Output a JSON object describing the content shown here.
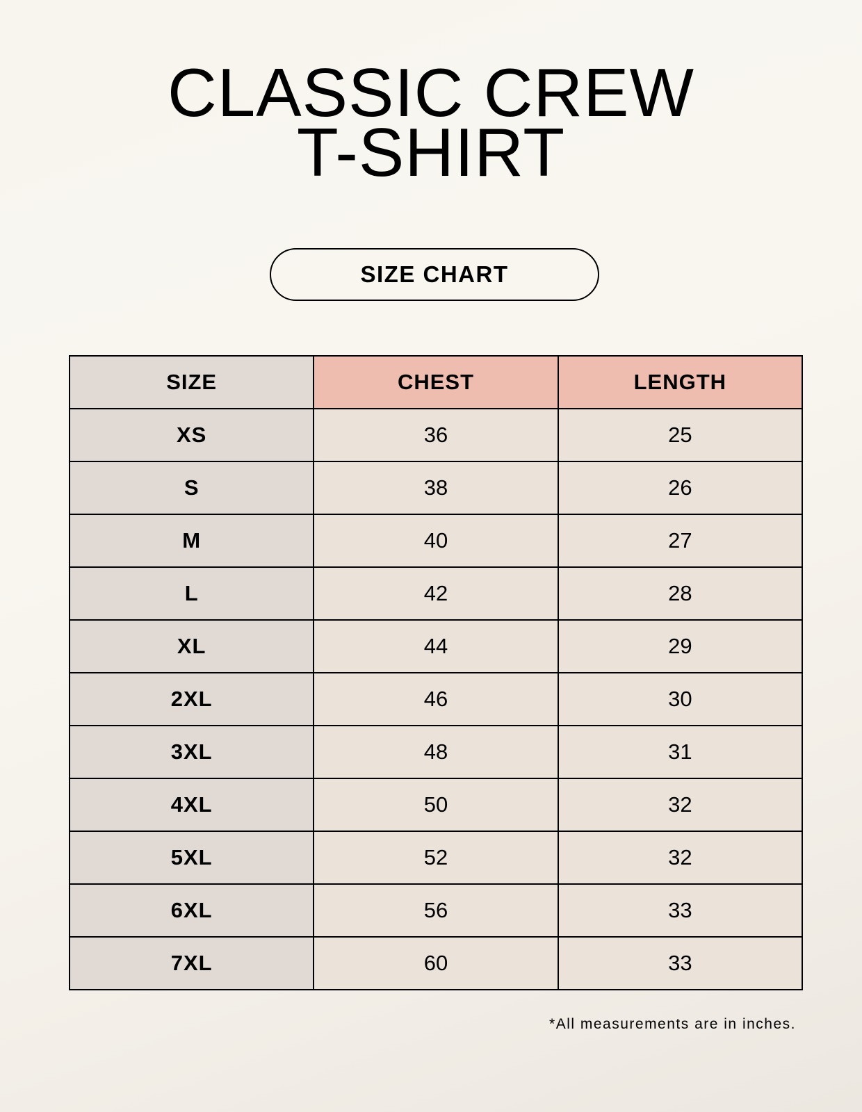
{
  "title": {
    "line1": "CLASSIC CREW",
    "line2": "T-SHIRT"
  },
  "badge": "SIZE CHART",
  "table": {
    "headers": [
      "SIZE",
      "CHEST",
      "LENGTH"
    ],
    "rows": [
      [
        "XS",
        "36",
        "25"
      ],
      [
        "S",
        "38",
        "26"
      ],
      [
        "M",
        "40",
        "27"
      ],
      [
        "L",
        "42",
        "28"
      ],
      [
        "XL",
        "44",
        "29"
      ],
      [
        "2XL",
        "46",
        "30"
      ],
      [
        "3XL",
        "48",
        "31"
      ],
      [
        "4XL",
        "50",
        "32"
      ],
      [
        "5XL",
        "52",
        "32"
      ],
      [
        "6XL",
        "56",
        "33"
      ],
      [
        "7XL",
        "60",
        "33"
      ]
    ]
  },
  "footnote": "*All measurements are in inches.",
  "colors": {
    "header_accent": "#eebdaf",
    "size_column": "#e1d9d3",
    "value_cells": "#ebe3d9"
  }
}
